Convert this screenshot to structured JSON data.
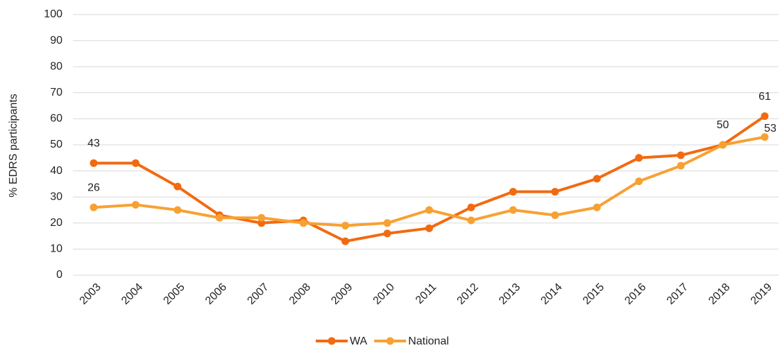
{
  "chart_data": {
    "type": "line",
    "categories": [
      "2003",
      "2004",
      "2005",
      "2006",
      "2007",
      "2008",
      "2009",
      "2010",
      "2011",
      "2012",
      "2013",
      "2014",
      "2015",
      "2016",
      "2017",
      "2018",
      "2019"
    ],
    "y_label": "% EDRS participants",
    "ylim": [
      0,
      100
    ],
    "yticks": [
      0,
      10,
      20,
      30,
      40,
      50,
      60,
      70,
      80,
      90,
      100
    ],
    "grid": true,
    "legend": "bottom",
    "series": [
      {
        "name": "WA",
        "color": "#f26a10",
        "values": [
          43,
          43,
          34,
          23,
          20,
          21,
          13,
          16,
          18,
          26,
          32,
          32,
          37,
          45,
          46,
          50,
          61
        ],
        "value_labels": [
          "43",
          null,
          null,
          null,
          null,
          null,
          null,
          null,
          null,
          null,
          null,
          null,
          null,
          null,
          null,
          "50",
          "61"
        ]
      },
      {
        "name": "National",
        "color": "#f7a133",
        "values": [
          26,
          27,
          25,
          22,
          22,
          20,
          19,
          20,
          25,
          21,
          25,
          23,
          26,
          36,
          42,
          50,
          53
        ],
        "value_labels": [
          "26",
          null,
          null,
          null,
          null,
          null,
          null,
          null,
          null,
          null,
          null,
          null,
          null,
          null,
          null,
          null,
          "53"
        ]
      }
    ]
  }
}
